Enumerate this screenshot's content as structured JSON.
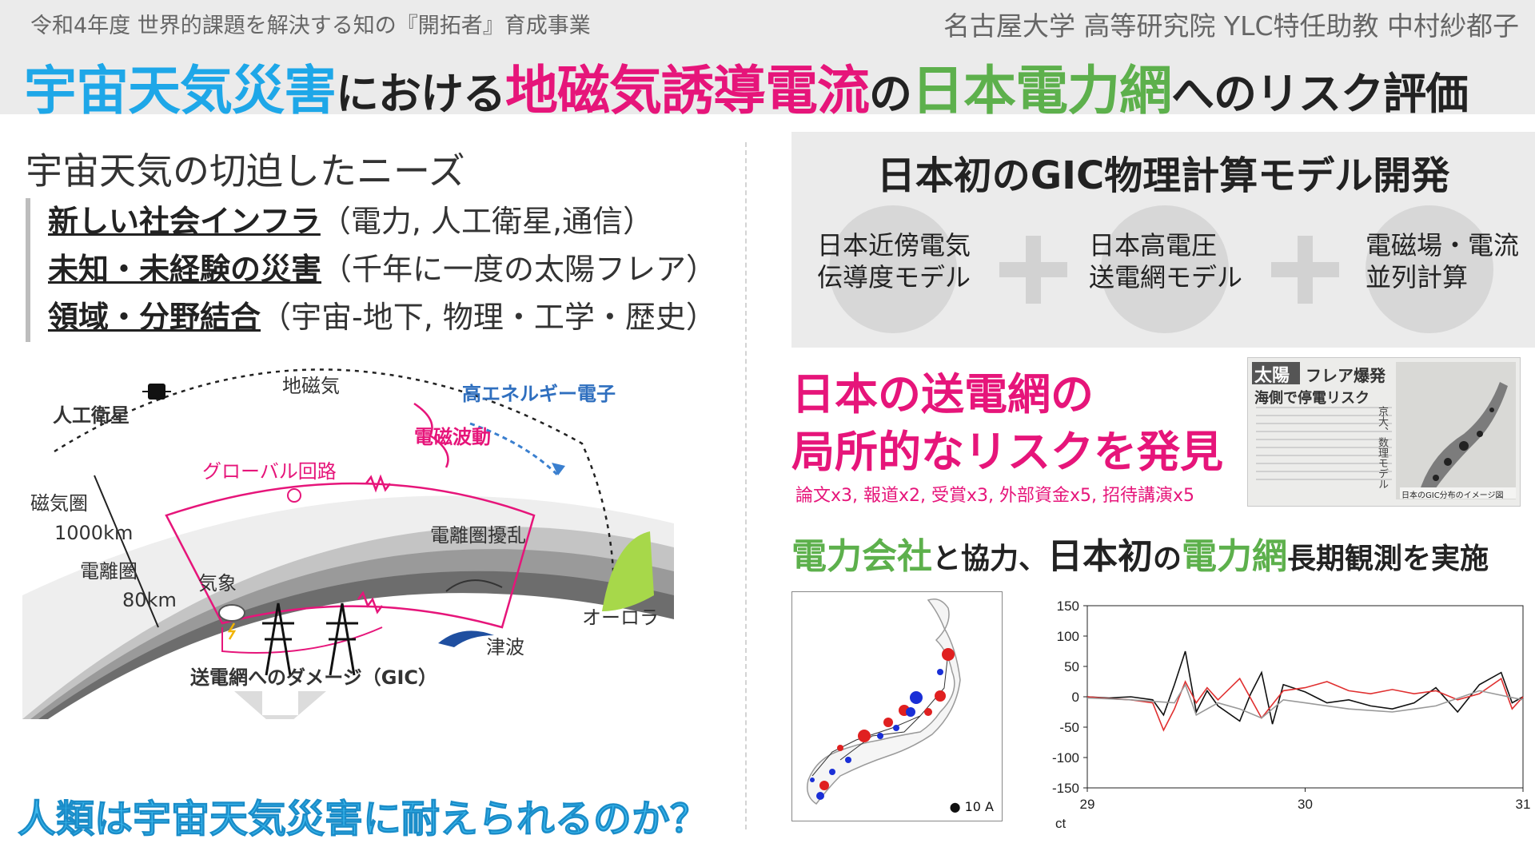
{
  "header": {
    "subtitle_left": "令和4年度  世界的課題を解決する知の『開拓者』育成事業",
    "subtitle_right": "名古屋大学 高等研究院 YLC特任助教  中村紗都子",
    "title_part1": "宇宙天気災害",
    "title_part2": "における",
    "title_part3": "地磁気誘導電流",
    "title_part4": "の",
    "title_part5": "日本電力網",
    "title_part6": "へのリスク評価",
    "colors": {
      "cyan": "#1ea7e8",
      "pink": "#e6157a",
      "green": "#5db04c"
    }
  },
  "left": {
    "heading": "宇宙天気の切迫したニーズ",
    "needs": [
      {
        "key": "新しい社会インフラ",
        "detail": "（電力, 人工衛星,通信）"
      },
      {
        "key": "未知・未経験の災害",
        "detail": "（千年に一度の太陽フレア）"
      },
      {
        "key": "領域・分野結合",
        "detail": "（宇宙-地下, 物理・工学・歴史）"
      }
    ],
    "diagram": {
      "satellite": "人工衛星",
      "geomagnetic": "地磁気",
      "electrons": "高エネルギー電子",
      "em_waves": "電磁波動",
      "magnetosphere": "磁気圏",
      "altitude_1000": "1000km",
      "ionosphere": "電離圏",
      "altitude_80": "80km",
      "global_circuit": "グローバル回路",
      "ionosphere_disturbance": "電離圏擾乱",
      "weather": "気象",
      "aurora": "オーロラ",
      "tsunami": "津波",
      "damage": "送電網へのダメージ（GIC）"
    },
    "question": "人類は宇宙天気災害に耐えられるのか？"
  },
  "right": {
    "model_title": "日本初のGIC物理計算モデル開発",
    "models": [
      {
        "line1": "日本近傍電気",
        "line2": "伝導度モデル"
      },
      {
        "line1": "日本高電圧",
        "line2": "送電網モデル"
      },
      {
        "line1": "電磁場・電流",
        "line2": "並列計算"
      }
    ],
    "risk_line1": "日本の送電網の",
    "risk_line2": "局所的なリスクを発見",
    "risk_stats": "論文x3, 報道x2, 受賞x3, 外部資金x5, 招待講演x5",
    "newspaper": {
      "headline_sun": "太陽",
      "headline1": "フレア爆発",
      "headline2": "海側で停電リスク",
      "side_text": "京大、数理モデル",
      "caption": "日本のGIC分布のイメージ図"
    },
    "observation": {
      "part1": "電力会社",
      "part2": "と協力、",
      "part3": "日本初",
      "part4": "の",
      "part5": "電力網",
      "part6": "長期観測を実施"
    },
    "map_legend": "● 10 A"
  },
  "chart_data": {
    "type": "line",
    "title": "",
    "xlabel": "ct",
    "ylabel": "",
    "x_ticks": [
      "29",
      "30",
      "31"
    ],
    "y_ticks": [
      150,
      100,
      50,
      0,
      -50,
      -100,
      -150
    ],
    "ylim": [
      -150,
      150
    ],
    "xlim": [
      29,
      31
    ],
    "series": [
      {
        "color": "#111111",
        "x": [
          29.0,
          29.1,
          29.2,
          29.3,
          29.35,
          29.4,
          29.45,
          29.5,
          29.55,
          29.6,
          29.7,
          29.75,
          29.8,
          29.85,
          29.9,
          30.0,
          30.1,
          30.2,
          30.3,
          30.4,
          30.5,
          30.6,
          30.7,
          30.8,
          30.9,
          30.95,
          31.0
        ],
        "y": [
          0,
          -2,
          0,
          -5,
          -30,
          20,
          75,
          -25,
          10,
          -15,
          -40,
          5,
          40,
          -45,
          20,
          8,
          -10,
          -5,
          -15,
          -20,
          -10,
          15,
          -25,
          20,
          40,
          -10,
          0
        ]
      },
      {
        "color": "#e03030",
        "x": [
          29.0,
          29.1,
          29.2,
          29.3,
          29.35,
          29.4,
          29.45,
          29.5,
          29.55,
          29.6,
          29.7,
          29.8,
          29.9,
          30.0,
          30.1,
          30.2,
          30.3,
          30.4,
          30.5,
          30.6,
          30.7,
          30.8,
          30.9,
          30.95,
          31.0
        ],
        "y": [
          0,
          -3,
          -5,
          -10,
          -55,
          -20,
          25,
          -10,
          15,
          -5,
          30,
          -35,
          10,
          15,
          25,
          10,
          5,
          12,
          5,
          10,
          -5,
          5,
          30,
          -20,
          0
        ]
      },
      {
        "color": "#999999",
        "x": [
          29.0,
          29.2,
          29.4,
          29.45,
          29.5,
          29.6,
          29.7,
          29.8,
          29.9,
          30.0,
          30.2,
          30.4,
          30.6,
          30.8,
          31.0
        ],
        "y": [
          -2,
          -5,
          -10,
          20,
          -30,
          -10,
          -20,
          -35,
          -5,
          -10,
          -20,
          -25,
          -15,
          10,
          -5
        ]
      }
    ]
  }
}
